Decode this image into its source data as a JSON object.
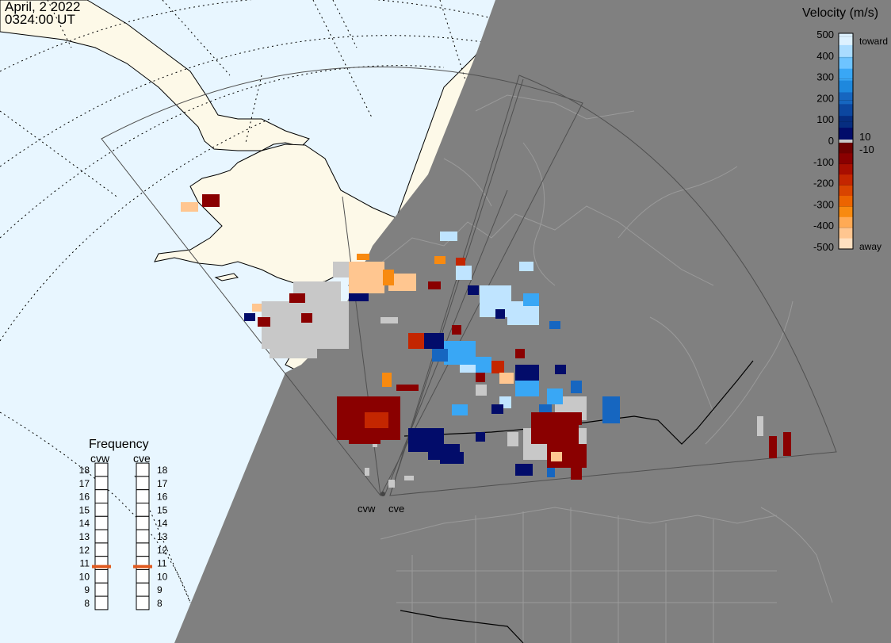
{
  "header": {
    "date": "April, 2 2022",
    "time": "0324:00 UT"
  },
  "colors": {
    "ocean": "#e8f6ff",
    "land_day": "#fdf9e8",
    "night": "#808080",
    "ground_scatter": "#c8c8c8",
    "boundary_night": "#9a9a9a",
    "fov_outline": "#505050"
  },
  "legend": {
    "title": "Velocity (m/s)",
    "ticks": [
      "500",
      "400",
      "300",
      "200",
      "100",
      "0",
      "-100",
      "-200",
      "-300",
      "-400",
      "-500"
    ],
    "small_labels": [
      "10",
      "-10"
    ],
    "toward_label": "toward",
    "away_label": "away",
    "toward_colors": [
      "#ddf1ff",
      "#aadcff",
      "#6ec4ff",
      "#39a7f5",
      "#1e88dd",
      "#1666c0",
      "#0c47a0",
      "#062d80",
      "#020c6a"
    ],
    "away_colors": [
      "#6e0000",
      "#8a0000",
      "#a80e00",
      "#c42600",
      "#d94400",
      "#ec6400",
      "#f88a10",
      "#ffaa55",
      "#ffc690",
      "#ffe0c0"
    ]
  },
  "frequency": {
    "title": "Frequency",
    "radars": [
      {
        "name": "cvw",
        "current_mhz": 10.7
      },
      {
        "name": "cve",
        "current_mhz": 10.7
      }
    ],
    "scale": [
      "18",
      "17",
      "16",
      "15",
      "14",
      "13",
      "12",
      "11",
      "10",
      "9",
      "8"
    ],
    "indicator_color": "#e05a20"
  },
  "radar_sites": [
    {
      "name": "cvw"
    },
    {
      "name": "cve"
    }
  ]
}
